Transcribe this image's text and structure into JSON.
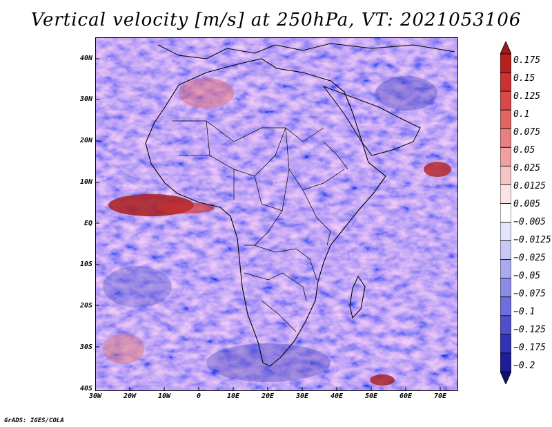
{
  "title": "Vertical velocity [m/s] at 250hPa, VT: 2021053106",
  "map": {
    "region": "Africa",
    "lat_labels": [
      "40N",
      "30N",
      "20N",
      "10N",
      "EQ",
      "10S",
      "20S",
      "30S",
      "40S"
    ],
    "lon_labels": [
      "30W",
      "20W",
      "10W",
      "0",
      "10E",
      "20E",
      "30E",
      "40E",
      "50E",
      "60E",
      "70E"
    ]
  },
  "colorbar": {
    "levels": [
      "0.175",
      "0.15",
      "0.125",
      "0.1",
      "0.075",
      "0.05",
      "0.025",
      "0.0125",
      "0.005",
      "−0.005",
      "−0.0125",
      "−0.025",
      "−0.05",
      "−0.075",
      "−0.1",
      "−0.125",
      "−0.175",
      "−0.2"
    ],
    "colors": [
      "#a01818",
      "#b82020",
      "#cc3232",
      "#d84a4a",
      "#e06464",
      "#e88080",
      "#f0a0a0",
      "#f6c4c4",
      "#fbe4e4",
      "#ffffff",
      "#e4e4fb",
      "#c8c8f4",
      "#aaaaee",
      "#8c8ce4",
      "#6e6edc",
      "#5050cc",
      "#3232b4",
      "#1e1e96",
      "#101070"
    ]
  },
  "credit": "GrADS: IGES/COLA"
}
